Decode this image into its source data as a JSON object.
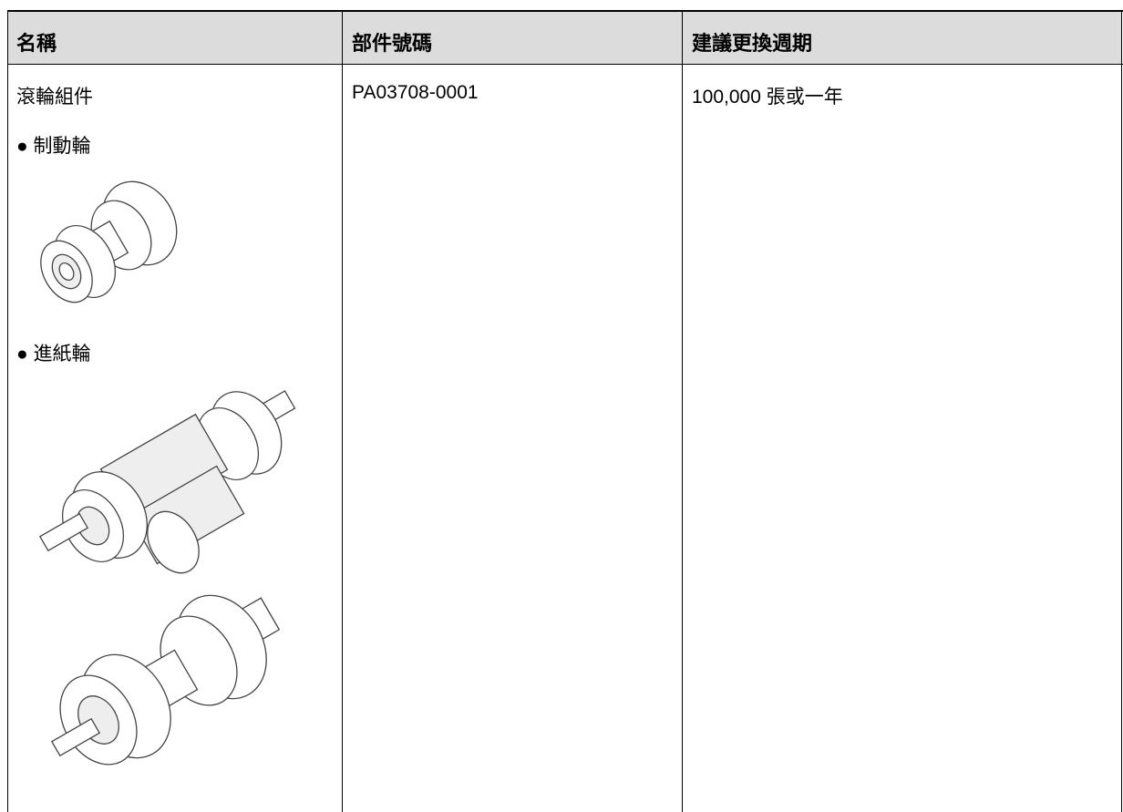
{
  "table": {
    "headers": [
      "名稱",
      "部件號碼",
      "建議更換週期"
    ],
    "rows": [
      {
        "name": "滾輪組件",
        "part_number": "PA03708-0001",
        "cycle": "100,000 張或一年",
        "components": [
          "● 制動輪",
          "● 進紙輪"
        ]
      }
    ]
  }
}
